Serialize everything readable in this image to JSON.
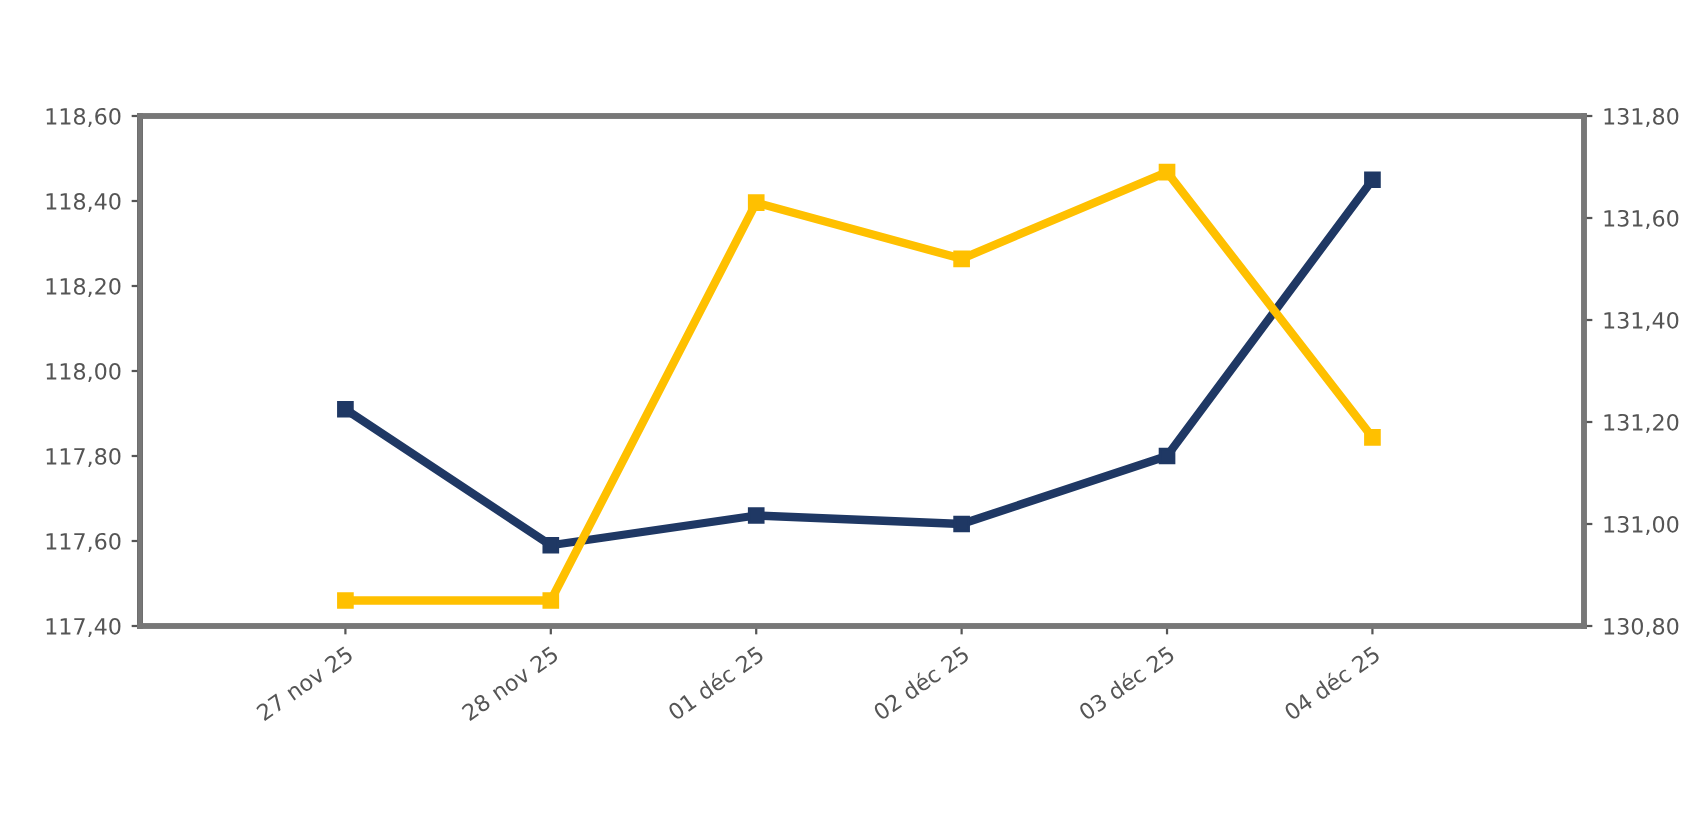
{
  "chart_data": {
    "type": "line",
    "categories": [
      "27 nov 25",
      "28 nov 25",
      "01 déc 25",
      "02 déc 25",
      "03 déc 25",
      "04 déc 25"
    ],
    "series": [
      {
        "color": "#1f3864",
        "values": [
          117.91,
          117.59,
          117.66,
          117.64,
          117.8,
          118.45
        ]
      },
      {
        "color": "#ffc000",
        "axis": "y2",
        "values": [
          130.85,
          130.85,
          131.63,
          131.52,
          131.69,
          131.17
        ]
      }
    ],
    "ylim": [
      117.4,
      118.6
    ],
    "yticks": [
      {
        "value": 117.4,
        "label": "117,40"
      },
      {
        "value": 117.6,
        "label": "117,60"
      },
      {
        "value": 117.8,
        "label": "117,80"
      },
      {
        "value": 118.0,
        "label": "118,00"
      },
      {
        "value": 118.2,
        "label": "118,20"
      },
      {
        "value": 118.4,
        "label": "118,40"
      },
      {
        "value": 118.6,
        "label": "118,60"
      }
    ],
    "y2lim": [
      130.8,
      131.8
    ],
    "y2ticks": [
      {
        "value": 130.8,
        "label": "130,80"
      },
      {
        "value": 131.0,
        "label": "131,00"
      },
      {
        "value": 131.2,
        "label": "131,20"
      },
      {
        "value": 131.4,
        "label": "131,40"
      },
      {
        "value": 131.6,
        "label": "131,60"
      },
      {
        "value": 131.8,
        "label": "131,80"
      }
    ],
    "marker": "square",
    "line_style": "solid",
    "grid": false
  }
}
